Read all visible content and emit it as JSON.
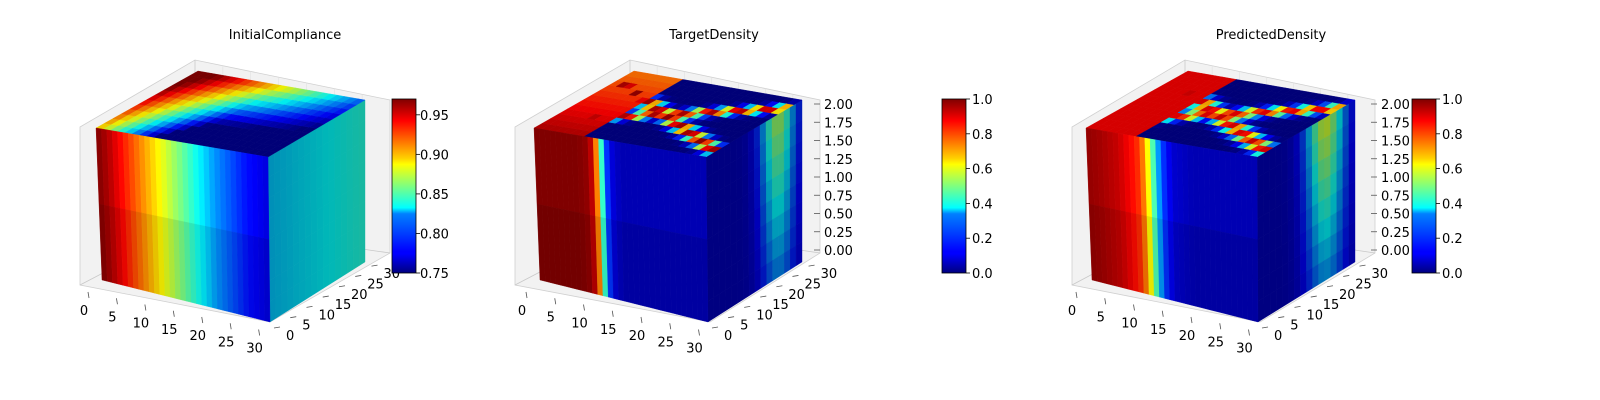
{
  "chart_data": [
    {
      "type": "heatmap",
      "title": "InitialCompliance",
      "colormap": "jet",
      "grid": true,
      "x_ticks": [
        "0",
        "5",
        "10",
        "15",
        "20",
        "25",
        "30"
      ],
      "y_ticks": [
        "0",
        "5",
        "10",
        "15",
        "20",
        "25",
        "30"
      ],
      "z_ticks": [],
      "xlim": [
        0,
        32
      ],
      "ylim": [
        0,
        32
      ],
      "zlim": [
        0,
        2
      ],
      "colorbar": {
        "range": [
          0.75,
          0.97
        ],
        "ticks": [
          "0.75",
          "0.80",
          "0.85",
          "0.90",
          "0.95"
        ]
      },
      "front_face_profile": {
        "x": [
          0,
          2,
          4,
          6,
          8,
          10,
          12,
          14,
          16,
          18,
          20,
          22,
          24,
          26,
          28,
          30,
          32
        ],
        "value": [
          0.97,
          0.96,
          0.945,
          0.93,
          0.915,
          0.9,
          0.885,
          0.87,
          0.855,
          0.84,
          0.825,
          0.81,
          0.8,
          0.79,
          0.78,
          0.775,
          0.77
        ]
      }
    },
    {
      "type": "heatmap",
      "title": "TargetDensity",
      "colormap": "jet",
      "grid": true,
      "x_ticks": [
        "0",
        "5",
        "10",
        "15",
        "20",
        "25",
        "30"
      ],
      "y_ticks": [
        "0",
        "5",
        "10",
        "15",
        "20",
        "25",
        "30"
      ],
      "z_ticks": [
        "0.00",
        "0.25",
        "0.50",
        "0.75",
        "1.00",
        "1.25",
        "1.50",
        "1.75",
        "2.00"
      ],
      "xlim": [
        0,
        32
      ],
      "ylim": [
        0,
        32
      ],
      "zlim": [
        0,
        2
      ],
      "colorbar": {
        "range": [
          0.0,
          1.0
        ],
        "ticks": [
          "0.0",
          "0.2",
          "0.4",
          "0.6",
          "0.8",
          "1.0"
        ]
      },
      "front_face_profile": {
        "x": [
          0,
          2,
          4,
          6,
          8,
          10,
          11,
          12,
          13,
          14,
          16,
          20,
          24,
          28,
          32
        ],
        "value": [
          1.0,
          1.0,
          1.0,
          1.0,
          1.0,
          0.98,
          0.9,
          0.6,
          0.25,
          0.1,
          0.05,
          0.05,
          0.05,
          0.05,
          0.05
        ]
      }
    },
    {
      "type": "heatmap",
      "title": "PredictedDensity",
      "colormap": "jet",
      "grid": true,
      "x_ticks": [
        "0",
        "5",
        "10",
        "15",
        "20",
        "25",
        "30"
      ],
      "y_ticks": [
        "0",
        "5",
        "10",
        "15",
        "20",
        "25",
        "30"
      ],
      "z_ticks": [
        "0.00",
        "0.25",
        "0.50",
        "0.75",
        "1.00",
        "1.25",
        "1.50",
        "1.75",
        "2.00"
      ],
      "xlim": [
        0,
        32
      ],
      "ylim": [
        0,
        32
      ],
      "zlim": [
        0,
        2
      ],
      "colorbar": {
        "range": [
          0.0,
          1.0
        ],
        "ticks": [
          "0.0",
          "0.2",
          "0.4",
          "0.6",
          "0.8",
          "1.0"
        ]
      },
      "front_face_profile": {
        "x": [
          0,
          2,
          4,
          6,
          8,
          10,
          11,
          12,
          13,
          14,
          16,
          20,
          24,
          28,
          32
        ],
        "value": [
          0.98,
          0.97,
          0.95,
          0.93,
          0.88,
          0.82,
          0.7,
          0.55,
          0.35,
          0.2,
          0.08,
          0.05,
          0.05,
          0.05,
          0.05
        ]
      }
    }
  ]
}
